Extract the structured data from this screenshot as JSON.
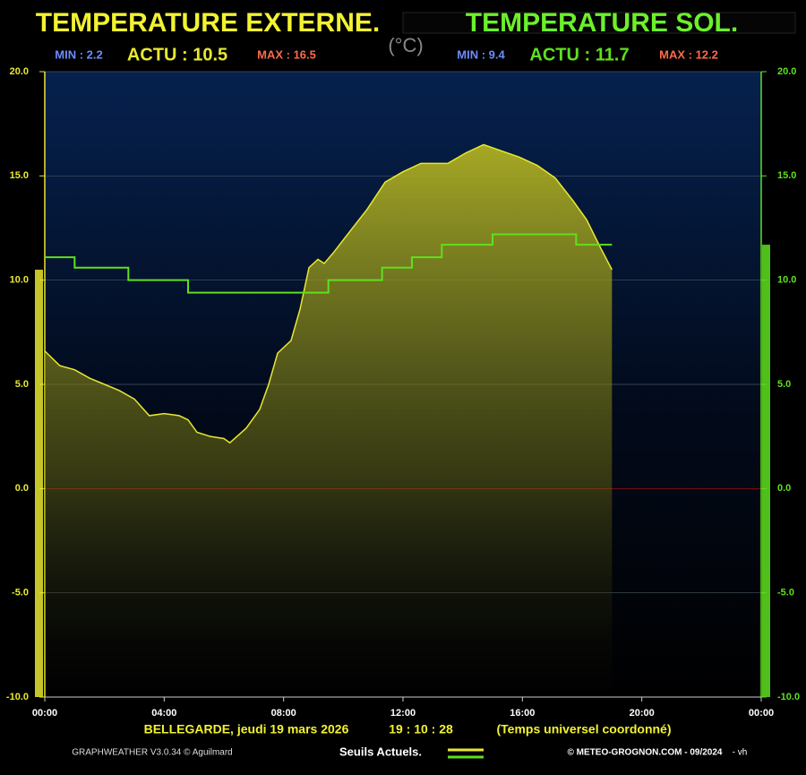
{
  "chart_data": {
    "type": "line",
    "unit_label": "(°C)",
    "xlim": [
      0,
      24
    ],
    "xticks": [
      {
        "value": 0,
        "label": "00:00"
      },
      {
        "value": 4,
        "label": "04:00"
      },
      {
        "value": 8,
        "label": "08:00"
      },
      {
        "value": 12,
        "label": "12:00"
      },
      {
        "value": 16,
        "label": "16:00"
      },
      {
        "value": 20,
        "label": "20:00"
      },
      {
        "value": 24,
        "label": "00:00"
      }
    ],
    "ylim": [
      -10,
      20
    ],
    "yticks": [
      {
        "value": 20,
        "label": "20.0"
      },
      {
        "value": 15,
        "label": "15.0"
      },
      {
        "value": 10,
        "label": "10.0"
      },
      {
        "value": 5,
        "label": "5.0"
      },
      {
        "value": 0,
        "label": "0.0"
      },
      {
        "value": -5,
        "label": "-5.0"
      },
      {
        "value": -10,
        "label": "-10.0"
      }
    ],
    "y2lim": [
      -10,
      20
    ],
    "y2ticks": [
      {
        "value": 20,
        "label": "20.0"
      },
      {
        "value": 15,
        "label": "15.0"
      },
      {
        "value": 10,
        "label": "10.0"
      },
      {
        "value": 5,
        "label": "5.0"
      },
      {
        "value": 0,
        "label": "0.0"
      },
      {
        "value": -5,
        "label": "-5.0"
      },
      {
        "value": -10,
        "label": "-10.0"
      }
    ],
    "grid": true,
    "zero_line_color": "#c01010",
    "series": [
      {
        "name": "TEMPERATURE EXTERNE.",
        "color": "#e8e830",
        "fill": true,
        "stats": [
          "MIN : 2.2",
          "ACTU : 10.5",
          "MAX : 16.5"
        ],
        "x": [
          0,
          0.5,
          1,
          1.5,
          2,
          2.5,
          3,
          3.5,
          4,
          4.5,
          4.8,
          5.1,
          5.55,
          6,
          6.2,
          6.75,
          7.2,
          7.5,
          7.8,
          8.25,
          8.55,
          8.85,
          9.15,
          9.36,
          9.66,
          10.2,
          10.8,
          11.4,
          12,
          12.6,
          13.5,
          14.1,
          14.7,
          15.3,
          15.9,
          16.5,
          17.1,
          17.7,
          18.15,
          18.6,
          19
        ],
        "values": [
          6.6,
          5.9,
          5.7,
          5.3,
          5.0,
          4.7,
          4.3,
          3.5,
          3.6,
          3.5,
          3.3,
          2.7,
          2.5,
          2.4,
          2.2,
          2.9,
          3.8,
          5.0,
          6.5,
          7.1,
          8.6,
          10.6,
          11.0,
          10.8,
          11.3,
          12.3,
          13.4,
          14.7,
          15.2,
          15.6,
          15.6,
          16.1,
          16.5,
          16.2,
          15.9,
          15.5,
          14.9,
          13.8,
          12.9,
          11.6,
          10.5
        ]
      },
      {
        "name": "TEMPERATURE SOL.",
        "color": "#5ee01e",
        "axis": "y2",
        "stats": [
          "MIN : 9.4",
          "ACTU : 11.7",
          "MAX : 12.2"
        ],
        "x": [
          0,
          1,
          1,
          2.8,
          2.8,
          4.8,
          4.8,
          9.5,
          9.5,
          11.3,
          11.3,
          12.3,
          12.3,
          13.3,
          13.3,
          15,
          15,
          17.8,
          17.8,
          19
        ],
        "values": [
          11.1,
          11.1,
          10.6,
          10.6,
          10.0,
          10.0,
          9.4,
          9.4,
          10.0,
          10.0,
          10.6,
          10.6,
          11.1,
          11.1,
          11.7,
          11.7,
          12.2,
          12.2,
          11.7,
          11.7
        ]
      }
    ],
    "station": "BELLEGARDE,  jeudi 19 mars 2026",
    "time": "19 : 10 : 28",
    "time_note": "(Temps universel coordonné)",
    "software": "GRAPHWEATHER V3.0.34 © Aguilmard",
    "legend_title": "Seuils Actuels.",
    "copyright": "© METEO-GROGNON.COM - 09/2024",
    "suffix": "- vh"
  }
}
